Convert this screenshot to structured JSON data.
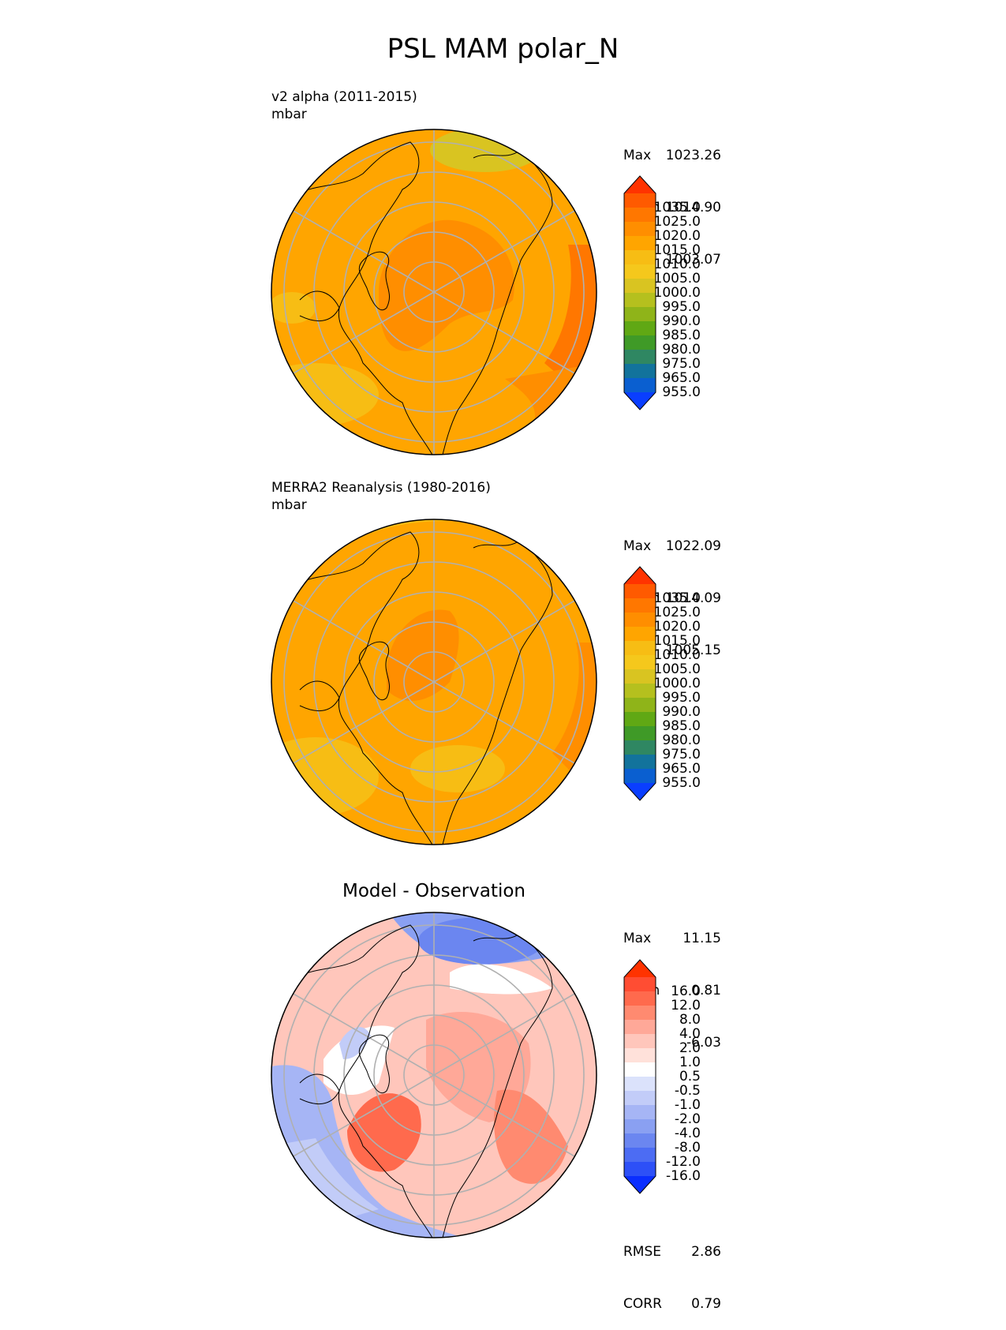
{
  "title": "PSL MAM polar_N",
  "panels": [
    {
      "id": "model",
      "label_line1": "v2 alpha (2011-2015)",
      "label_line2": "mbar",
      "stats": [
        {
          "k": "Max",
          "v": "1023.26"
        },
        {
          "k": "Mean",
          "v": "1014.90"
        },
        {
          "k": "Min",
          "v": "1003.07"
        }
      ]
    },
    {
      "id": "obs",
      "label_line1": "MERRA2 Reanalysis (1980-2016)",
      "label_line2": "mbar",
      "stats": [
        {
          "k": "Max",
          "v": "1022.09"
        },
        {
          "k": "Mean",
          "v": "1014.09"
        },
        {
          "k": "Min",
          "v": "1005.15"
        }
      ]
    },
    {
      "id": "diff",
      "title": "Model - Observation",
      "stats": [
        {
          "k": "Max",
          "v": "11.15"
        },
        {
          "k": "Mean",
          "v": "0.81"
        },
        {
          "k": "Min",
          "v": "-6.03"
        }
      ],
      "metrics": [
        {
          "k": "RMSE",
          "v": "2.86"
        },
        {
          "k": "CORR",
          "v": "0.79"
        }
      ]
    }
  ],
  "colorbar_field": {
    "ticks": [
      "1035.0",
      "1025.0",
      "1020.0",
      "1015.0",
      "1010.0",
      "1005.0",
      "1000.0",
      "995.0",
      "990.0",
      "985.0",
      "980.0",
      "975.0",
      "965.0",
      "955.0"
    ],
    "colors": [
      "#ff3300",
      "#ff5a00",
      "#ff7700",
      "#ff8e00",
      "#ffa500",
      "#f7bd14",
      "#f5c81c",
      "#d9c421",
      "#b5c01e",
      "#8fb419",
      "#60a814",
      "#3f9a27",
      "#2f8762",
      "#12739c",
      "#0a5fd0",
      "#0a3eff"
    ]
  },
  "colorbar_diff": {
    "ticks": [
      "16.0",
      "12.0",
      "8.0",
      "4.0",
      "2.0",
      "1.0",
      "0.5",
      "-0.5",
      "-1.0",
      "-2.0",
      "-4.0",
      "-8.0",
      "-12.0",
      "-16.0"
    ],
    "colors": [
      "#ff3300",
      "#ff4d33",
      "#ff6a4d",
      "#ff8a70",
      "#ffa898",
      "#ffc6bb",
      "#ffe1da",
      "#ffffff",
      "#dbe2fb",
      "#c2ccf8",
      "#a6b5f5",
      "#8aa0f2",
      "#6b86f0",
      "#4c6cf3",
      "#2d50f7",
      "#0a2eff"
    ]
  },
  "map_style": {
    "grid_color": "#b0b0b0",
    "coast_color": "#000000"
  }
}
